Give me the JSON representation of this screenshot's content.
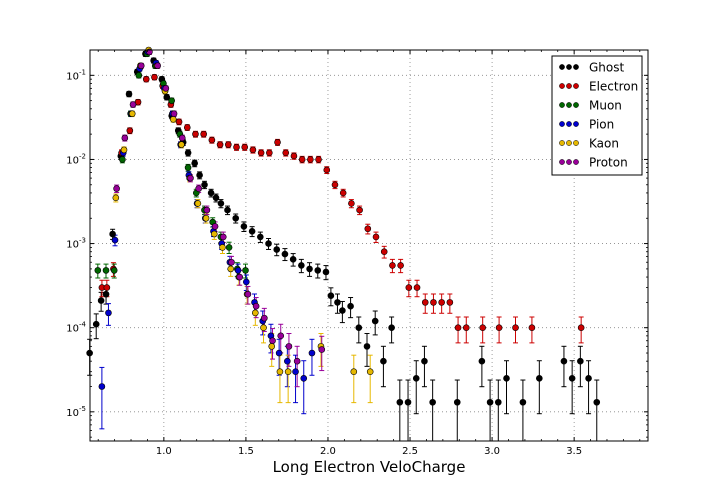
{
  "chart_data": {
    "type": "scatter",
    "xlabel": "Long Electron VeloCharge",
    "ylabel": "",
    "xlim": [
      0.55,
      3.95
    ],
    "ylim": [
      4.5e-06,
      0.2
    ],
    "yscale": "log",
    "grid": true,
    "legend_position": "top-right",
    "x_ticks": [
      1.0,
      1.5,
      2.0,
      2.5,
      3.0,
      3.5
    ],
    "x_tick_labels": [
      "1.0",
      "1.5",
      "2.0",
      "2.5",
      "3.0",
      "3.5"
    ],
    "y_ticks": [
      1e-05,
      0.0001,
      0.001,
      0.01,
      0.1
    ],
    "series": [
      {
        "name": "Ghost",
        "color": "#000000",
        "points": [
          [
            0.56,
            5e-05
          ],
          [
            0.6,
            0.00011
          ],
          [
            0.63,
            0.00021
          ],
          [
            0.66,
            0.00025
          ],
          [
            0.7,
            0.0013
          ],
          [
            0.75,
            0.011
          ],
          [
            0.8,
            0.06
          ],
          [
            0.85,
            0.11
          ],
          [
            0.9,
            0.18
          ],
          [
            0.95,
            0.15
          ],
          [
            1.0,
            0.09
          ],
          [
            1.03,
            0.055
          ],
          [
            1.06,
            0.033
          ],
          [
            1.1,
            0.022
          ],
          [
            1.13,
            0.016
          ],
          [
            1.16,
            0.012
          ],
          [
            1.2,
            0.009
          ],
          [
            1.23,
            0.0065
          ],
          [
            1.26,
            0.005
          ],
          [
            1.3,
            0.004
          ],
          [
            1.33,
            0.0035
          ],
          [
            1.36,
            0.003
          ],
          [
            1.4,
            0.0025
          ],
          [
            1.45,
            0.002
          ],
          [
            1.5,
            0.0016
          ],
          [
            1.55,
            0.0014
          ],
          [
            1.6,
            0.0012
          ],
          [
            1.65,
            0.001
          ],
          [
            1.7,
            0.00085
          ],
          [
            1.75,
            0.00075
          ],
          [
            1.8,
            0.00065
          ],
          [
            1.85,
            0.00055
          ],
          [
            1.9,
            0.0005
          ],
          [
            1.95,
            0.00048
          ],
          [
            2.0,
            0.00046
          ],
          [
            2.03,
            0.00024
          ],
          [
            2.07,
            0.0002
          ],
          [
            2.1,
            0.00016
          ],
          [
            2.15,
            0.00018
          ],
          [
            2.2,
            0.0001
          ],
          [
            2.25,
            6e-05
          ],
          [
            2.3,
            0.00012
          ],
          [
            2.35,
            4e-05
          ],
          [
            2.4,
            0.0001
          ],
          [
            2.45,
            1.3e-05
          ],
          [
            2.5,
            1.3e-05
          ],
          [
            2.55,
            2.5e-05
          ],
          [
            2.6,
            4e-05
          ],
          [
            2.65,
            1.3e-05
          ],
          [
            2.8,
            1.3e-05
          ],
          [
            2.95,
            4e-05
          ],
          [
            3.0,
            1.3e-05
          ],
          [
            3.05,
            1.3e-05
          ],
          [
            3.1,
            2.5e-05
          ],
          [
            3.2,
            1.3e-05
          ],
          [
            3.3,
            2.5e-05
          ],
          [
            3.45,
            4e-05
          ],
          [
            3.5,
            2.5e-05
          ],
          [
            3.55,
            4e-05
          ],
          [
            3.6,
            2.5e-05
          ],
          [
            3.65,
            1.3e-05
          ]
        ]
      },
      {
        "name": "Electron",
        "color": "#cc0000",
        "points": [
          [
            0.63,
            0.0003
          ],
          [
            0.66,
            0.0003
          ],
          [
            0.7,
            0.0005
          ],
          [
            0.75,
            0.012
          ],
          [
            0.8,
            0.022
          ],
          [
            0.85,
            0.048
          ],
          [
            0.9,
            0.09
          ],
          [
            0.95,
            0.095
          ],
          [
            1.0,
            0.075
          ],
          [
            1.05,
            0.045
          ],
          [
            1.1,
            0.028
          ],
          [
            1.15,
            0.024
          ],
          [
            1.2,
            0.02
          ],
          [
            1.25,
            0.02
          ],
          [
            1.3,
            0.017
          ],
          [
            1.35,
            0.015
          ],
          [
            1.4,
            0.015
          ],
          [
            1.45,
            0.014
          ],
          [
            1.5,
            0.014
          ],
          [
            1.55,
            0.013
          ],
          [
            1.6,
            0.012
          ],
          [
            1.65,
            0.012
          ],
          [
            1.7,
            0.016
          ],
          [
            1.75,
            0.012
          ],
          [
            1.8,
            0.011
          ],
          [
            1.85,
            0.01
          ],
          [
            1.9,
            0.01
          ],
          [
            1.95,
            0.01
          ],
          [
            2.0,
            0.0075
          ],
          [
            2.05,
            0.005
          ],
          [
            2.1,
            0.004
          ],
          [
            2.15,
            0.003
          ],
          [
            2.2,
            0.0025
          ],
          [
            2.25,
            0.0015
          ],
          [
            2.3,
            0.0012
          ],
          [
            2.35,
            0.0008
          ],
          [
            2.4,
            0.00055
          ],
          [
            2.45,
            0.00055
          ],
          [
            2.5,
            0.0003
          ],
          [
            2.55,
            0.0003
          ],
          [
            2.6,
            0.0002
          ],
          [
            2.65,
            0.0002
          ],
          [
            2.7,
            0.0002
          ],
          [
            2.75,
            0.0002
          ],
          [
            2.8,
            0.0001
          ],
          [
            2.85,
            0.0001
          ],
          [
            2.95,
            0.0001
          ],
          [
            3.05,
            0.0001
          ],
          [
            3.15,
            0.0001
          ],
          [
            3.25,
            0.0001
          ],
          [
            3.55,
            0.0001
          ]
        ]
      },
      {
        "name": "Muon",
        "color": "#006600",
        "points": [
          [
            0.6,
            0.00048
          ],
          [
            0.65,
            0.00048
          ],
          [
            0.7,
            0.00048
          ],
          [
            0.75,
            0.01
          ],
          [
            0.8,
            0.035
          ],
          [
            0.85,
            0.1
          ],
          [
            0.9,
            0.18
          ],
          [
            0.95,
            0.13
          ],
          [
            1.0,
            0.08
          ],
          [
            1.05,
            0.05
          ],
          [
            1.1,
            0.02
          ],
          [
            1.15,
            0.008
          ],
          [
            1.2,
            0.004
          ],
          [
            1.25,
            0.0025
          ],
          [
            1.3,
            0.0018
          ],
          [
            1.35,
            0.0012
          ],
          [
            1.4,
            0.0009
          ],
          [
            1.45,
            0.0005
          ],
          [
            1.5,
            0.00048
          ]
        ]
      },
      {
        "name": "Pion",
        "color": "#0000cc",
        "points": [
          [
            0.62,
            2e-05
          ],
          [
            0.66,
            0.00015
          ],
          [
            0.7,
            0.0011
          ],
          [
            0.75,
            0.012
          ],
          [
            0.8,
            0.035
          ],
          [
            0.85,
            0.12
          ],
          [
            0.9,
            0.19
          ],
          [
            0.95,
            0.14
          ],
          [
            1.0,
            0.07
          ],
          [
            1.05,
            0.035
          ],
          [
            1.1,
            0.015
          ],
          [
            1.15,
            0.0065
          ],
          [
            1.2,
            0.003
          ],
          [
            1.25,
            0.002
          ],
          [
            1.3,
            0.0014
          ],
          [
            1.35,
            0.001
          ],
          [
            1.4,
            0.0006
          ],
          [
            1.45,
            0.00048
          ],
          [
            1.5,
            0.00035
          ],
          [
            1.55,
            0.0002
          ],
          [
            1.6,
            0.00012
          ],
          [
            1.65,
            8e-05
          ],
          [
            1.7,
            5e-05
          ],
          [
            1.75,
            4e-05
          ],
          [
            1.8,
            3e-05
          ],
          [
            1.85,
            2.5e-05
          ],
          [
            1.9,
            5e-05
          ]
        ]
      },
      {
        "name": "Kaon",
        "color": "#e6b800",
        "points": [
          [
            0.7,
            0.0035
          ],
          [
            0.75,
            0.013
          ],
          [
            0.8,
            0.035
          ],
          [
            0.85,
            0.13
          ],
          [
            0.9,
            0.2
          ],
          [
            0.95,
            0.13
          ],
          [
            1.0,
            0.065
          ],
          [
            1.05,
            0.03
          ],
          [
            1.1,
            0.015
          ],
          [
            1.15,
            0.006
          ],
          [
            1.2,
            0.003
          ],
          [
            1.25,
            0.002
          ],
          [
            1.3,
            0.0013
          ],
          [
            1.35,
            0.0009
          ],
          [
            1.4,
            0.0005
          ],
          [
            1.45,
            0.0004
          ],
          [
            1.5,
            0.00025
          ],
          [
            1.55,
            0.00015
          ],
          [
            1.6,
            0.0001
          ],
          [
            1.65,
            6e-05
          ],
          [
            1.7,
            3e-05
          ],
          [
            1.75,
            3e-05
          ],
          [
            1.95,
            6e-05
          ],
          [
            2.15,
            3e-05
          ],
          [
            2.25,
            3e-05
          ]
        ]
      },
      {
        "name": "Proton",
        "color": "#990099",
        "points": [
          [
            0.7,
            0.0045
          ],
          [
            0.75,
            0.018
          ],
          [
            0.8,
            0.045
          ],
          [
            0.85,
            0.13
          ],
          [
            0.9,
            0.19
          ],
          [
            0.95,
            0.13
          ],
          [
            1.0,
            0.07
          ],
          [
            1.05,
            0.035
          ],
          [
            1.1,
            0.018
          ],
          [
            1.15,
            0.006
          ],
          [
            1.2,
            0.0045
          ],
          [
            1.25,
            0.0025
          ],
          [
            1.3,
            0.0016
          ],
          [
            1.35,
            0.0012
          ],
          [
            1.4,
            0.0006
          ],
          [
            1.45,
            0.0004
          ],
          [
            1.5,
            0.00025
          ],
          [
            1.55,
            0.00018
          ],
          [
            1.6,
            0.00013
          ],
          [
            1.65,
            7e-05
          ],
          [
            1.7,
            8e-05
          ],
          [
            1.75,
            6e-05
          ],
          [
            1.8,
            4e-05
          ],
          [
            1.95,
            5.5e-05
          ]
        ]
      }
    ]
  }
}
